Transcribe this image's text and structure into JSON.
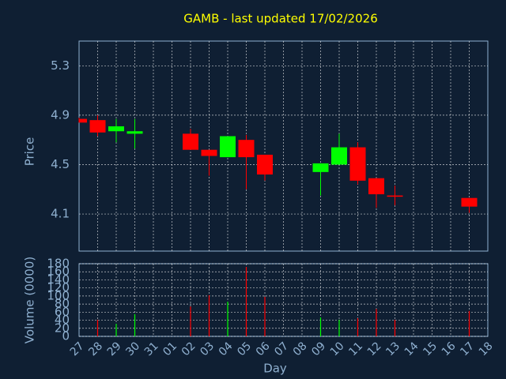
{
  "chart_data": {
    "type": "candlestick",
    "title": "GAMB - last updated 17/02/2026",
    "title_color": "#ffff00",
    "y_label": "Price",
    "y2_label": "Volume (0000)",
    "x_label": "Day",
    "categories": [
      "27",
      "28",
      "29",
      "30",
      "31",
      "01",
      "02",
      "03",
      "04",
      "05",
      "06",
      "07",
      "08",
      "09",
      "10",
      "11",
      "12",
      "13",
      "14",
      "15",
      "16",
      "17",
      "18"
    ],
    "open": [
      4.87,
      4.86,
      4.77,
      4.75,
      null,
      null,
      4.75,
      4.62,
      4.56,
      4.7,
      4.58,
      null,
      null,
      4.44,
      4.5,
      4.64,
      4.39,
      4.25,
      null,
      null,
      null,
      4.23,
      null
    ],
    "high": [
      4.88,
      4.9,
      4.87,
      4.87,
      null,
      null,
      4.79,
      4.62,
      4.73,
      4.74,
      4.58,
      null,
      null,
      4.51,
      4.75,
      4.68,
      4.39,
      4.33,
      null,
      null,
      null,
      4.23,
      null
    ],
    "low": [
      4.84,
      4.73,
      4.68,
      4.63,
      null,
      null,
      4.62,
      4.41,
      4.56,
      4.3,
      4.37,
      null,
      null,
      4.25,
      4.5,
      4.34,
      4.15,
      4.17,
      null,
      null,
      null,
      4.11,
      null
    ],
    "close": [
      4.84,
      4.76,
      4.81,
      4.77,
      null,
      null,
      4.62,
      4.57,
      4.73,
      4.56,
      4.42,
      null,
      null,
      4.51,
      4.64,
      4.37,
      4.26,
      4.24,
      null,
      null,
      null,
      4.16,
      null
    ],
    "volume": [
      null,
      41,
      31,
      55,
      null,
      null,
      74,
      102,
      86,
      172,
      98,
      null,
      null,
      47,
      41,
      45,
      68,
      41,
      null,
      null,
      null,
      63,
      null
    ],
    "up_color": "#00ff00",
    "down_color": "#ff0000",
    "ylim": [
      3.8,
      5.5
    ],
    "yticks": [
      4.1,
      4.5,
      4.9,
      5.3
    ],
    "y2lim": [
      0,
      180
    ],
    "y2ticks": [
      0,
      20,
      40,
      60,
      80,
      100,
      120,
      140,
      160,
      180
    ],
    "grid": true
  }
}
